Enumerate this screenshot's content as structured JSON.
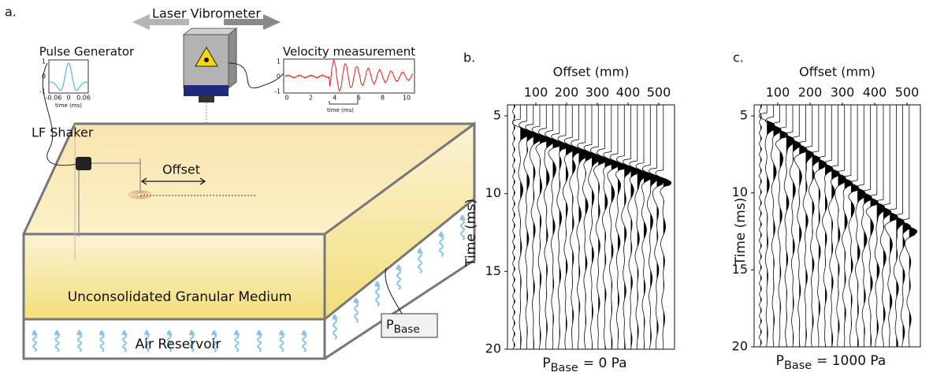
{
  "panel_a": {
    "label": "a.",
    "laser": "Laser Vibrometer",
    "pulse_generator": {
      "title": "Pulse Generator",
      "yticks": [
        1,
        0,
        -1
      ],
      "xticks": [
        -0.06,
        0,
        0.06
      ],
      "xlabel": "time (ms)"
    },
    "velocity": {
      "title": "Velocity measurement",
      "yticks": [
        1,
        0,
        -1
      ],
      "xticks": [
        0,
        2,
        4,
        6,
        8,
        10
      ],
      "xlabel": "time (ms)"
    },
    "shaker": "LF Shaker",
    "offset": "Offset",
    "medium": "Unconsolidated Granular Medium",
    "reservoir": "Air Reservoir",
    "pbase": {
      "p": "P",
      "sub": "Base"
    }
  },
  "panel_b": {
    "label": "b.",
    "xlabel": "Offset (mm)",
    "ylabel": "Time (ms)",
    "xticks": [
      100,
      200,
      300,
      400,
      500
    ],
    "yticks": [
      5,
      10,
      15,
      20
    ],
    "caption": {
      "p": "P",
      "sub": "Base",
      "rest": "= 0 Pa"
    }
  },
  "panel_c": {
    "label": "c.",
    "xlabel": "Offset (mm)",
    "ylabel": "Time (ms)",
    "xticks": [
      100,
      200,
      300,
      400,
      500
    ],
    "yticks": [
      5,
      10,
      15,
      20
    ],
    "caption": {
      "p": "P",
      "sub": "Base",
      "rest": "= 1000 Pa"
    }
  }
}
